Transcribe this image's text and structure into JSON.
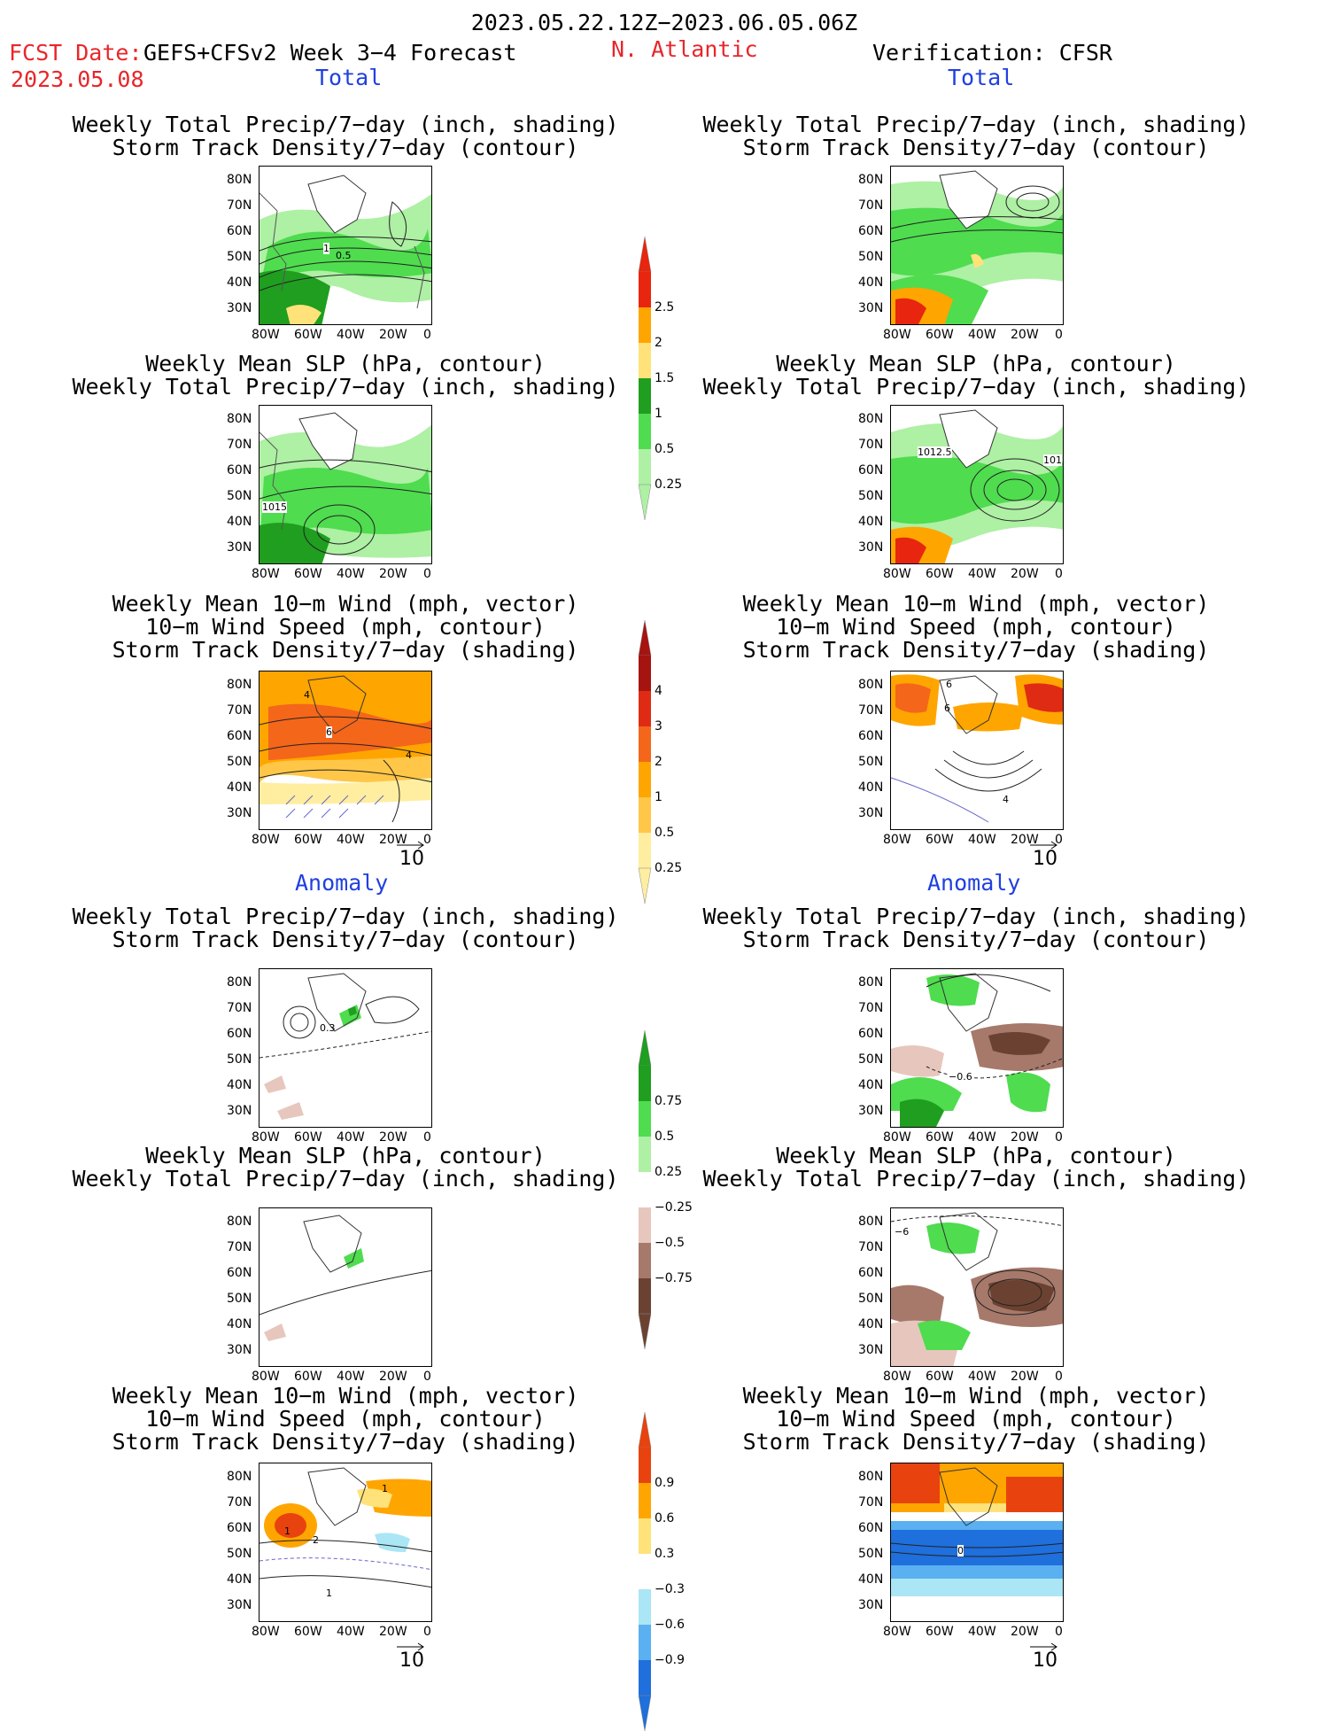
{
  "header": {
    "period": "2023.05.22.12Z−2023.06.05.06Z",
    "fcst_label": "FCST Date:",
    "fcst_model": "GEFS+CFSv2 Week 3−4 Forecast",
    "fcst_date": "2023.05.08",
    "region": "N. Atlantic",
    "verification": "Verification: CFSR"
  },
  "sections": {
    "total": "Total",
    "anomaly": "Anomaly"
  },
  "titles": {
    "precip_storm": [
      "Weekly Total Precip/7−day (inch, shading)",
      "Storm Track Density/7−day (contour)"
    ],
    "slp_precip": [
      "Weekly Mean SLP (hPa, contour)",
      "Weekly Total Precip/7−day (inch, shading)"
    ],
    "wind": [
      "Weekly Mean 10−m Wind (mph, vector)",
      "10−m Wind Speed (mph, contour)",
      "Storm Track Density/7−day (shading)"
    ]
  },
  "axes": {
    "lat_labels": [
      "80N",
      "70N",
      "60N",
      "50N",
      "40N",
      "30N"
    ],
    "lon_labels": [
      "80W",
      "60W",
      "40W",
      "20W",
      "0"
    ]
  },
  "vector_ref": "10",
  "colorbars": {
    "precip_total": {
      "labels": [
        "2.5",
        "2",
        "1.5",
        "1",
        "0.5",
        "0.25"
      ],
      "colors": [
        "#e8250e",
        "#ffa500",
        "#ffe27a",
        "#1f9e1f",
        "#4fdc4f",
        "#aef0a4"
      ]
    },
    "storm_total": {
      "labels": [
        "4",
        "3",
        "2",
        "1",
        "0.5",
        "0.25"
      ],
      "colors": [
        "#a51410",
        "#e02b14",
        "#f4661a",
        "#ffa500",
        "#ffc648",
        "#ffeea0"
      ]
    },
    "precip_anom": {
      "labels": [
        "0.75",
        "0.5",
        "0.25",
        "−0.25",
        "−0.5",
        "−0.75"
      ],
      "colors": [
        "#1f9e1f",
        "#4fdc4f",
        "#aef0a4",
        "#ffffff",
        "#e7c7bd",
        "#a6796b",
        "#6b4232"
      ]
    },
    "storm_anom": {
      "labels": [
        "0.9",
        "0.6",
        "0.3",
        "−0.3",
        "−0.6",
        "−0.9"
      ],
      "colors": [
        "#e8430e",
        "#ffa500",
        "#ffe27a",
        "#ffffff",
        "#aae6f5",
        "#5ab0f0",
        "#1f6fdc"
      ]
    }
  },
  "contour_labels": {
    "p1": [
      "1",
      "0.5"
    ],
    "p2": [
      "1015"
    ],
    "p3": [
      "4",
      "6",
      "4"
    ],
    "p5": [
      "1012.5",
      "101"
    ],
    "p6": [
      "6",
      "6",
      "4"
    ],
    "p7": [
      "0.3"
    ],
    "p9": [
      "1",
      "1",
      "2",
      "1"
    ],
    "p10": [
      "−0.6"
    ],
    "p11": [
      "−6"
    ],
    "p12": [
      "0"
    ]
  }
}
